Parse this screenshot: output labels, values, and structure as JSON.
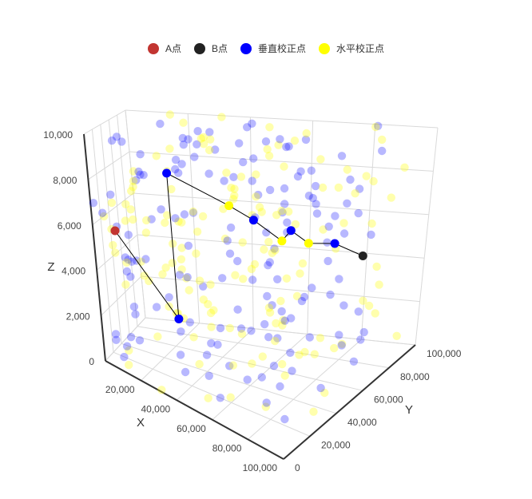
{
  "legend": [
    {
      "label": "A点",
      "color": "#c23531"
    },
    {
      "label": "B点",
      "color": "#222222"
    },
    {
      "label": "垂直校正点",
      "color": "#0000ff"
    },
    {
      "label": "水平校正点",
      "color": "#ffff00"
    }
  ],
  "chart_data": {
    "type": "scatter3d",
    "xlabel": "X",
    "ylabel": "Y",
    "zlabel": "Z",
    "xlim": [
      0,
      100000
    ],
    "ylim": [
      0,
      100000
    ],
    "zlim": [
      0,
      10000
    ],
    "x_ticks": [
      "20,000",
      "40,000",
      "60,000",
      "80,000",
      "100,000"
    ],
    "y_ticks": [
      "0",
      "20,000",
      "40,000",
      "60,000",
      "80,000",
      "100,000"
    ],
    "z_ticks": [
      "0",
      "2,000",
      "4,000",
      "6,000",
      "8,000",
      "10,000"
    ],
    "grid": true,
    "point_a": {
      "x": 0,
      "y": 50000,
      "z": 5000
    },
    "point_b": {
      "x": 100000,
      "y": 59652,
      "z": 5022
    },
    "path": [
      {
        "x": 0,
        "y": 50000,
        "z": 5000,
        "type": "A"
      },
      {
        "x": 30000,
        "y": 35000,
        "z": 2000,
        "type": "vertical"
      },
      {
        "x": 18000,
        "y": 72000,
        "z": 7500,
        "type": "vertical"
      },
      {
        "x": 40000,
        "y": 75000,
        "z": 6200,
        "type": "horizontal"
      },
      {
        "x": 48000,
        "y": 78000,
        "z": 5600,
        "type": "vertical"
      },
      {
        "x": 62000,
        "y": 70000,
        "z": 5000,
        "type": "horizontal"
      },
      {
        "x": 62000,
        "y": 78000,
        "z": 5300,
        "type": "vertical"
      },
      {
        "x": 70000,
        "y": 75000,
        "z": 4900,
        "type": "horizontal"
      },
      {
        "x": 80000,
        "y": 75000,
        "z": 5000,
        "type": "vertical"
      },
      {
        "x": 100000,
        "y": 59652,
        "z": 5022,
        "type": "B"
      }
    ]
  }
}
